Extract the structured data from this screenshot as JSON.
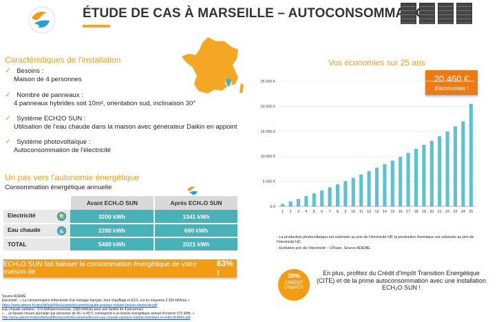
{
  "header": {
    "title": "ÉTUDE DE CAS À MARSEILLE – AUTOCONSOMMATION"
  },
  "installation": {
    "heading": "Caractéristiques de l'installation",
    "items": [
      {
        "label": "Besoins :",
        "detail": "Maison de 4 personnes"
      },
      {
        "label": "Nombre de panneaux :",
        "detail": "4 panneaux hybrides soit 10m², orientation sud, inclinaison 30°"
      },
      {
        "label": "Système ECH2O SUN :",
        "detail": "Utilisation de l'eau chaude dans la maison avec générateur Daikin en appoint"
      },
      {
        "label": "Système photovoltaïque :",
        "detail": "Autoconsommation de l'électricité"
      }
    ]
  },
  "autonomy": {
    "heading": "Un pas vers l'autonomie énergétique",
    "subheading": "Consommation énergétique annuelle",
    "columns": [
      "Avant ECH₂O SUN",
      "Après ECH₂O SUN"
    ],
    "rows": [
      {
        "label": "Electricité",
        "icon": "lightbulb-icon",
        "before": "3200  kWh",
        "after": "1341 kWh"
      },
      {
        "label": "Eau chaude",
        "icon": "water-heater-icon",
        "before": "2280 kWh",
        "after": "680 kWh"
      },
      {
        "label": "TOTAL",
        "before": "5480 kWh",
        "after": "2021 kWh"
      }
    ],
    "banner_text": "ECH₂O SUN fait baisser la consommation énergétique de votre maison de",
    "banner_value": "63% !"
  },
  "sources": {
    "title": "Source ADEME",
    "line1": "Electricité : « La consommation d'électricité d'un ménage français, hors chauffage et ECS, est en moyenne 3 200 kWh/an »",
    "link1": "https://www.ademe.fr/sites/default/files/assets/documents/guide-pratique-reduire-facture-electricite.pdf",
    "line2": "Eau chaude sanitaire : 570 kWh/personne/an, 2280 kWh/an pour une famille de 4 personnes",
    "line3": "« …un besoin moyen journalier par personne de 56 l à 40°C correspond à un besoin énergétique annuel d'environ 570 kWh. »",
    "link2": "http://www.ademe.fr/sites/default/files/assets/documents/besoin-eau-chaude-sanitaire-habitat-individuel-et-collectif-8666.pdf"
  },
  "savings": {
    "heading": "Vos économies sur 25 ans",
    "amount": "20 460 €",
    "amount_label": "d'économies !"
  },
  "chart_data": {
    "type": "bar",
    "categories": [
      "1",
      "2",
      "3",
      "4",
      "5",
      "6",
      "7",
      "8",
      "9",
      "10",
      "11",
      "12",
      "13",
      "14",
      "15",
      "16",
      "17",
      "18",
      "19",
      "20",
      "21",
      "22",
      "23",
      "24",
      "25"
    ],
    "values": [
      500,
      1000,
      1500,
      2050,
      2600,
      3200,
      3800,
      4400,
      5050,
      5700,
      6350,
      7050,
      7750,
      8450,
      9150,
      9900,
      10700,
      11500,
      12300,
      13100,
      14000,
      14950,
      16000,
      17000,
      20460
    ],
    "y_ticks": [
      "0 €",
      "5 000 €",
      "10 000 €",
      "15 000 €",
      "20 000 €",
      "25 000 €"
    ],
    "ylim": [
      0,
      25000
    ],
    "bar_color": "#5bc2d3"
  },
  "notes": {
    "line1": "- La production photovoltaïque est valorisée au prix de l'électricité HP, la production thermique est valorisée au prix de l'électricité HC.",
    "line2": "- Evolution prix de l'électricité : +3%/an. Source ADEME."
  },
  "cite": {
    "badge_percent": "30%",
    "badge_line1": "CRÉDIT",
    "badge_line2": "D'IMPÔT",
    "text": "En plus, profitez du Crédit d'Impôt Transition Energétique (CITE)  et de la prime autoconsommation avec une installation ECH₂O SUN !"
  }
}
